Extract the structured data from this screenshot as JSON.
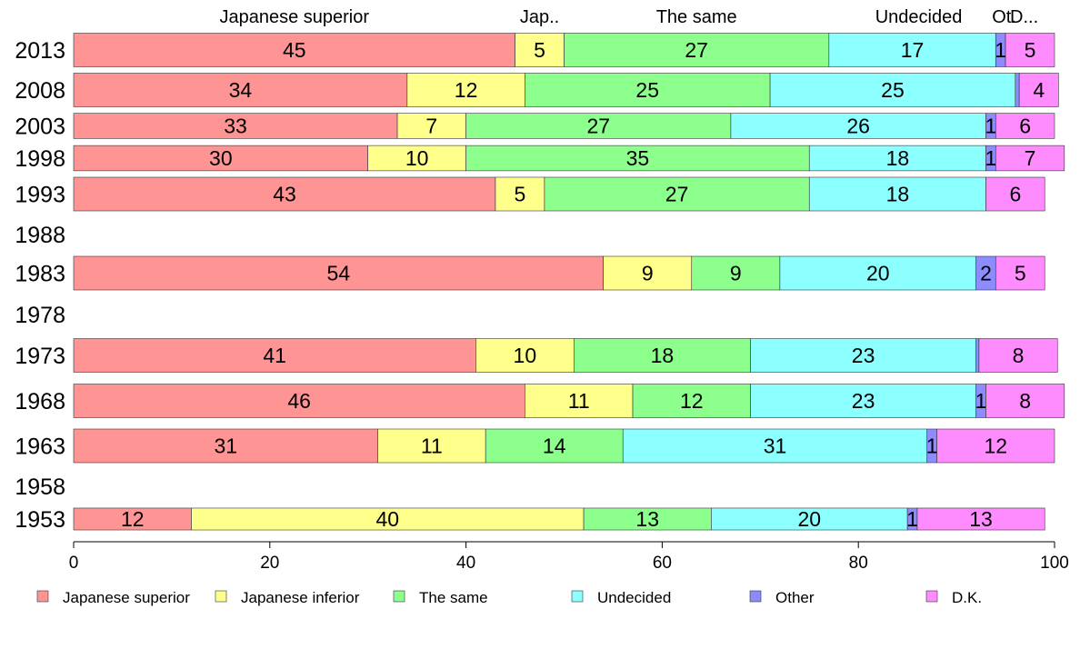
{
  "chart_data": {
    "type": "bar",
    "orientation": "horizontal",
    "stacked": true,
    "categories": [
      "2013",
      "2008",
      "2003",
      "1998",
      "1993",
      "1988",
      "1983",
      "1978",
      "1973",
      "1968",
      "1963",
      "1958",
      "1953"
    ],
    "series": [
      {
        "name": "Japanese superior",
        "color": "#ff9494",
        "values": [
          45,
          34,
          33,
          30,
          43,
          null,
          54,
          null,
          41,
          46,
          31,
          null,
          12
        ],
        "labels": [
          "45",
          "34",
          "33",
          "30",
          "43",
          "",
          "54",
          "",
          "41",
          "46",
          "31",
          "",
          "12"
        ]
      },
      {
        "name": "Japanese inferior",
        "color": "#ffff8c",
        "values": [
          5,
          12,
          7,
          10,
          5,
          null,
          9,
          null,
          10,
          11,
          11,
          null,
          40
        ],
        "labels": [
          "5",
          "12",
          "7",
          "10",
          "5",
          "",
          "9",
          "",
          "10",
          "11",
          "11",
          "",
          "40"
        ]
      },
      {
        "name": "The same",
        "color": "#8cff8c",
        "values": [
          27,
          25,
          27,
          35,
          27,
          null,
          9,
          null,
          18,
          12,
          14,
          null,
          13
        ],
        "labels": [
          "27",
          "25",
          "27",
          "35",
          "27",
          "",
          "9",
          "",
          "18",
          "12",
          "14",
          "",
          "13"
        ]
      },
      {
        "name": "Undecided",
        "color": "#8cffff",
        "values": [
          17,
          25,
          26,
          18,
          18,
          null,
          20,
          null,
          23,
          23,
          31,
          null,
          20
        ],
        "labels": [
          "17",
          "25",
          "26",
          "18",
          "18",
          "",
          "20",
          "",
          "23",
          "23",
          "31",
          "",
          "20"
        ]
      },
      {
        "name": "Other",
        "color": "#8c8cff",
        "values": [
          1,
          0.4,
          1,
          1,
          0,
          null,
          2,
          null,
          0.3,
          1,
          1,
          null,
          1
        ],
        "labels": [
          "1",
          "",
          "1",
          "1",
          "",
          "",
          "2",
          "",
          "",
          "1",
          "1",
          "",
          "1"
        ]
      },
      {
        "name": "D.K.",
        "color": "#ff8cff",
        "values": [
          5,
          4,
          6,
          7,
          6,
          null,
          5,
          null,
          8,
          8,
          12,
          null,
          13
        ],
        "labels": [
          "5",
          "4",
          "6",
          "7",
          "6",
          "",
          "5",
          "",
          "8",
          "8",
          "12",
          "",
          "13"
        ]
      }
    ],
    "bar_height_scale": [
      1,
      1,
      0.75,
      0.75,
      1,
      0,
      1,
      0,
      1,
      1,
      1,
      0,
      0.65
    ],
    "top_labels": [
      "Japanese superior",
      "Jap..",
      "The same",
      "Undecided",
      "Ot.",
      "D..."
    ],
    "xticks": [
      "0",
      "20",
      "40",
      "60",
      "80",
      "100"
    ],
    "xlim": [
      0,
      100
    ],
    "grid": false,
    "legend": {
      "position": "bottom",
      "entries": [
        "Japanese superior",
        "Japanese inferior",
        "The same",
        "Undecided",
        "Other",
        "D.K."
      ]
    }
  }
}
